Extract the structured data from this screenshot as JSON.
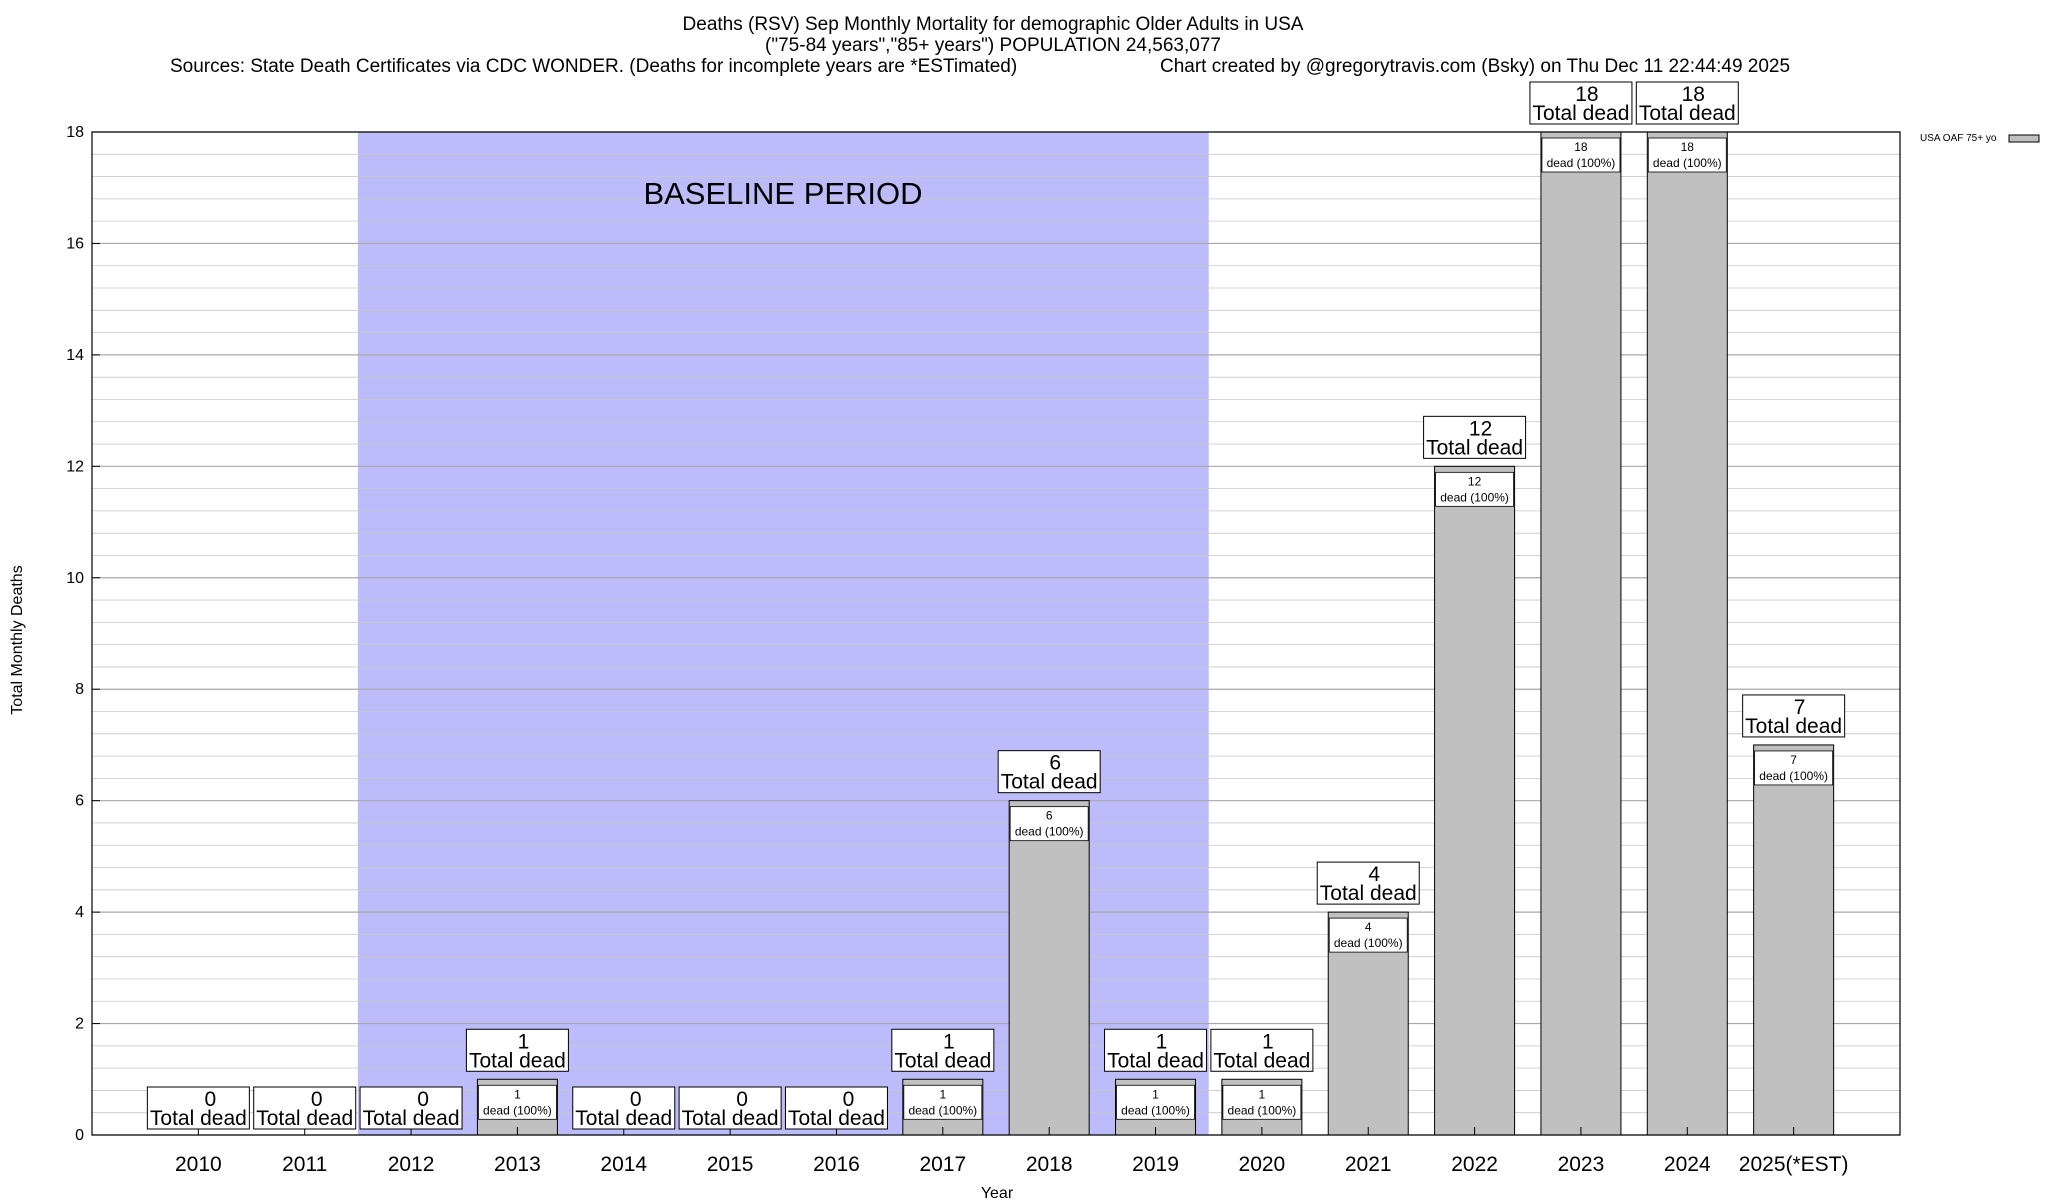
{
  "chart_data": {
    "type": "bar",
    "title": "Deaths (RSV) Sep Monthly Mortality for demographic Older Adults in USA",
    "subtitle": "(\"75-84 years\",\"85+ years\") POPULATION 24,563,077",
    "sources": "Sources: State Death Certificates via CDC WONDER. (Deaths for incomplete years are *ESTimated)",
    "credit": "Chart created by @gregorytravis.com (Bsky) on Thu Dec 11 22:44:49 2025",
    "xlabel": "Year",
    "ylabel": "Total Monthly Deaths",
    "ylim": [
      0,
      18
    ],
    "yticks": [
      0,
      2,
      4,
      6,
      8,
      10,
      12,
      14,
      16,
      18
    ],
    "grid": true,
    "legend_position": "top-right",
    "categories": [
      "2010",
      "2011",
      "2012",
      "2013",
      "2014",
      "2015",
      "2016",
      "2017",
      "2018",
      "2019",
      "2020",
      "2021",
      "2022",
      "2023",
      "2024",
      "2025(*EST)"
    ],
    "series": [
      {
        "name": "USA OAF 75+ yo",
        "values": [
          0,
          0,
          0,
          1,
          0,
          0,
          0,
          1,
          6,
          1,
          1,
          4,
          12,
          18,
          18,
          7
        ],
        "color": "#c0c0c0"
      }
    ],
    "total_label": "Total dead",
    "segment_label": "dead (100%)",
    "baseline": {
      "label": "BASELINE PERIOD",
      "from_category": "2012",
      "to_category": "2019",
      "color": "#bcbcfa"
    }
  }
}
